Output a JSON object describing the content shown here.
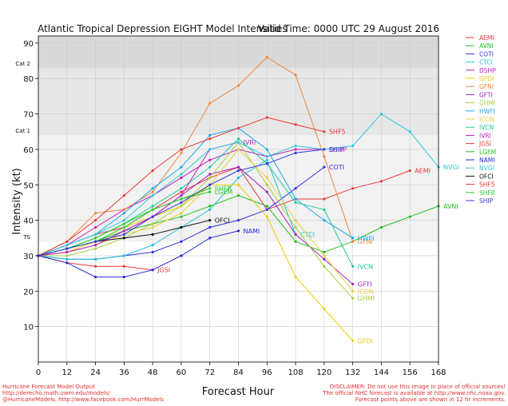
{
  "chart_data": {
    "type": "line",
    "title": "Atlantic Tropical Depression EIGHT Model Intensities",
    "valid_time": "Valid Time: 0000 UTC 29 August 2016",
    "xlabel": "Forecast Hour",
    "ylabel": "Intensity (kt)",
    "xlim": [
      0,
      168
    ],
    "ylim": [
      0,
      92
    ],
    "x_ticks": [
      0,
      12,
      24,
      36,
      48,
      60,
      72,
      84,
      96,
      108,
      120,
      132,
      144,
      156,
      168
    ],
    "y_ticks": [
      10,
      20,
      30,
      40,
      50,
      60,
      70,
      80,
      90
    ],
    "bands": [
      {
        "name": "TS",
        "from": 34,
        "to": 64,
        "color": "#f2f2f2"
      },
      {
        "name": "Cat 1",
        "from": 64,
        "to": 83,
        "color": "#e6e6e6"
      },
      {
        "name": "Cat 2",
        "from": 83,
        "to": 92,
        "color": "#d9d9d9"
      }
    ],
    "band_labels": [
      {
        "text": "TS",
        "y": 34
      },
      {
        "text": "Cat 1",
        "y": 64
      },
      {
        "text": "Cat 2",
        "y": 83
      }
    ],
    "series": [
      {
        "name": "AEMI",
        "color": "#e8383d",
        "label": "AEMI",
        "x": [
          0,
          12,
          24,
          36,
          48,
          60,
          72,
          84,
          96,
          108,
          120,
          132,
          144,
          156
        ],
        "values": [
          30,
          33,
          36,
          38,
          43,
          48,
          52,
          55,
          43,
          46,
          46,
          49,
          51,
          54
        ]
      },
      {
        "name": "AVNI",
        "color": "#22bb22",
        "label": "AVNI",
        "x": [
          0,
          12,
          24,
          36,
          48,
          60,
          72,
          84,
          96,
          108,
          120,
          132,
          144,
          156,
          168
        ],
        "values": [
          30,
          32,
          34,
          37,
          39,
          41,
          44,
          47,
          44,
          34,
          31,
          34,
          38,
          41,
          44
        ]
      },
      {
        "name": "COTI",
        "color": "#3333dd",
        "label": "COTI",
        "x": [
          0,
          12,
          24,
          36,
          48,
          60,
          72,
          84,
          96,
          108,
          120
        ],
        "values": [
          30,
          29,
          29,
          30,
          31,
          34,
          38,
          40,
          43,
          49,
          55
        ]
      },
      {
        "name": "CTCI",
        "color": "#20c0d8",
        "label": "CTCI",
        "x": [
          0,
          12,
          24,
          36,
          48,
          60,
          72,
          84,
          96,
          108
        ],
        "values": [
          30,
          29,
          29,
          30,
          33,
          38,
          43,
          52,
          57,
          36
        ]
      },
      {
        "name": "DSHP",
        "color": "#c020c0",
        "label": "DSHP",
        "x": [
          0,
          12,
          24,
          36,
          48,
          60,
          72,
          84,
          96,
          108,
          120
        ],
        "values": [
          30,
          33,
          38,
          43,
          47,
          52,
          57,
          60,
          58,
          60,
          60
        ]
      },
      {
        "name": "GFDI",
        "color": "#e8d000",
        "label": "GFDI",
        "x": [
          0,
          12,
          24,
          36,
          48,
          60,
          72,
          84,
          96,
          108,
          120,
          132
        ],
        "values": [
          30,
          31,
          34,
          38,
          41,
          44,
          50,
          50,
          41,
          24,
          15,
          6
        ]
      },
      {
        "name": "GFNI",
        "color": "#f08840",
        "label": "GFNI",
        "x": [
          0,
          12,
          24,
          36,
          48,
          60,
          72,
          84,
          96,
          108,
          120,
          132
        ],
        "values": [
          30,
          34,
          42,
          43,
          48,
          59,
          73,
          78,
          86,
          81,
          58,
          34
        ]
      },
      {
        "name": "GFTI",
        "color": "#a020c0",
        "label": "GFTI",
        "x": [
          0,
          12,
          24,
          36,
          48,
          60,
          72,
          84,
          96,
          108,
          120,
          132
        ],
        "values": [
          30,
          31,
          33,
          37,
          41,
          47,
          53,
          55,
          48,
          36,
          29,
          22
        ]
      },
      {
        "name": "GHMI",
        "color": "#a8d040",
        "label": "GHMI",
        "x": [
          0,
          12,
          24,
          36,
          48,
          60,
          72,
          84,
          96,
          108,
          120,
          132
        ],
        "values": [
          30,
          30,
          32,
          35,
          39,
          44,
          52,
          62,
          50,
          38,
          27,
          18
        ]
      },
      {
        "name": "HWFI",
        "color": "#20a8e8",
        "label": "HWFI",
        "x": [
          0,
          12,
          24,
          36,
          48,
          60,
          72,
          84,
          96,
          108,
          120,
          132
        ],
        "values": [
          30,
          33,
          36,
          42,
          49,
          55,
          64,
          66,
          60,
          46,
          40,
          35
        ]
      },
      {
        "name": "ICON",
        "color": "#e8d040",
        "label": "ICON",
        "x": [
          0,
          12,
          24,
          36,
          48,
          60,
          72,
          84,
          96,
          108,
          120,
          132
        ],
        "values": [
          30,
          31,
          33,
          36,
          38,
          42,
          50,
          60,
          52,
          40,
          30,
          20
        ]
      },
      {
        "name": "IVCN",
        "color": "#20c8a0",
        "label": "IVCN",
        "x": [
          0,
          12,
          24,
          36,
          48,
          60,
          72,
          84,
          96,
          108,
          120,
          132
        ],
        "values": [
          30,
          32,
          35,
          39,
          44,
          49,
          55,
          63,
          56,
          45,
          43,
          27
        ]
      },
      {
        "name": "IVRI",
        "color": "#c020c0",
        "label": "IVRI",
        "x": [
          0,
          12,
          24,
          36,
          48,
          60,
          72,
          84
        ],
        "values": [
          30,
          31,
          33,
          37,
          41,
          47,
          60,
          62
        ]
      },
      {
        "name": "JGSI",
        "color": "#e83838",
        "label": "JGSI",
        "x": [
          0,
          12,
          24,
          36,
          48
        ],
        "values": [
          30,
          28,
          27,
          27,
          26
        ]
      },
      {
        "name": "LGEM",
        "color": "#22cc22",
        "label": "LGEM",
        "x": [
          0,
          12,
          24,
          36,
          48,
          60,
          72
        ],
        "values": [
          30,
          32,
          35,
          39,
          43,
          46,
          48
        ]
      },
      {
        "name": "NAMI",
        "color": "#2828d8",
        "label": "NAMI",
        "x": [
          0,
          12,
          24,
          36,
          48,
          60,
          72,
          84
        ],
        "values": [
          30,
          28,
          24,
          24,
          26,
          30,
          35,
          37
        ]
      },
      {
        "name": "NVGI",
        "color": "#30c8d8",
        "label": "NVGI",
        "x": [
          0,
          12,
          24,
          36,
          48,
          60,
          72,
          84,
          96,
          108,
          120,
          132,
          144,
          156,
          168
        ],
        "values": [
          30,
          33,
          36,
          40,
          47,
          53,
          60,
          62,
          58,
          61,
          60,
          61,
          70,
          65,
          55
        ]
      },
      {
        "name": "OFCI",
        "color": "#111111",
        "label": "OFCI",
        "x": [
          0,
          12,
          24,
          36,
          48,
          60,
          72
        ],
        "values": [
          30,
          32,
          34,
          35,
          36,
          38,
          40
        ]
      },
      {
        "name": "SHF5",
        "color": "#e83838",
        "label": "SHF5",
        "x": [
          0,
          12,
          24,
          36,
          48,
          60,
          72,
          84,
          96,
          108,
          120
        ],
        "values": [
          30,
          34,
          40,
          47,
          54,
          60,
          63,
          66,
          69,
          67,
          65
        ]
      },
      {
        "name": "SHFR",
        "color": "#30d030",
        "label": "SHFR",
        "x": [
          0,
          12,
          24,
          36,
          48,
          60,
          72
        ],
        "values": [
          30,
          32,
          34,
          38,
          43,
          46,
          49
        ]
      },
      {
        "name": "SHIP",
        "color": "#3838e0",
        "label": "SHIP",
        "x": [
          0,
          12,
          24,
          36,
          48,
          60,
          72,
          84,
          96,
          108,
          120
        ],
        "values": [
          30,
          32,
          34,
          36,
          41,
          45,
          50,
          54,
          56,
          59,
          60
        ]
      }
    ]
  },
  "footer": {
    "left_lines": [
      "Hurricane Forecast Model Output",
      "http://derecho.math.uwm.edu/models/",
      "@HurricaneModels, http://www.facebook.com/HurrModels"
    ],
    "right_lines": [
      "DISCLAIMER: Do not use this image in place of official sources!",
      "The official NHC forecast is available at http://www.nhc.noaa.gov.",
      "Forecast points above are shown in 12 hr increments."
    ]
  }
}
